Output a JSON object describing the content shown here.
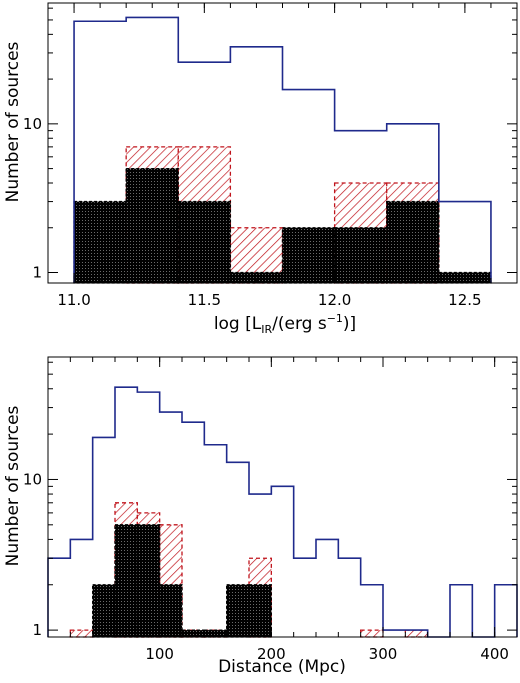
{
  "colors": {
    "all_outline": "#1f2a8c",
    "red_hatch": "#c0141c",
    "black_fill": "#000000"
  },
  "chart_data": [
    {
      "type": "histogram",
      "xlabel": "log [L_IR/(erg s^-1)]",
      "xlabel_parts": {
        "pre": "log [L",
        "sub": "IR",
        "mid": "/(erg s",
        "sup": "−1",
        "post": ")]"
      },
      "ylabel": "Number of sources",
      "yscale": "log",
      "xlim": [
        10.9,
        12.7
      ],
      "ylim": [
        0.85,
        65
      ],
      "xticks": [
        11.0,
        11.5,
        12.0,
        12.5
      ],
      "xtick_labels": [
        "11.0",
        "11.5",
        "12.0",
        "12.5"
      ],
      "yticks": [
        1,
        10
      ],
      "ytick_labels": [
        "1",
        "10"
      ],
      "bin_edges": [
        11.0,
        11.2,
        11.4,
        11.6,
        11.8,
        12.0,
        12.2,
        12.4,
        12.6
      ],
      "series": [
        {
          "style": "step-outline",
          "values": [
            49,
            52,
            26,
            33,
            17,
            9,
            10,
            3
          ]
        },
        {
          "style": "red-hatched",
          "values": [
            0,
            7,
            7,
            2,
            0,
            4,
            4,
            0
          ]
        },
        {
          "style": "black-filled",
          "values": [
            3,
            5,
            3,
            1,
            2,
            2,
            3,
            1
          ]
        }
      ]
    },
    {
      "type": "histogram",
      "xlabel": "Distance (Mpc)",
      "ylabel": "Number of sources",
      "yscale": "log",
      "xlim": [
        0,
        420
      ],
      "ylim": [
        0.9,
        65
      ],
      "xticks": [
        100,
        200,
        300,
        400
      ],
      "xtick_labels": [
        "100",
        "200",
        "300",
        "400"
      ],
      "yticks": [
        1,
        10
      ],
      "ytick_labels": [
        "1",
        "10"
      ],
      "bin_edges": [
        0,
        20,
        40,
        60,
        80,
        100,
        120,
        140,
        160,
        180,
        200,
        220,
        240,
        260,
        280,
        300,
        320,
        340,
        360,
        380,
        400,
        420
      ],
      "series": [
        {
          "style": "step-outline",
          "values": [
            3,
            4,
            19,
            41,
            38,
            28,
            24,
            17,
            13,
            8,
            9,
            3,
            4,
            3,
            2,
            1,
            1,
            0,
            2,
            0,
            2
          ]
        },
        {
          "style": "red-hatched",
          "values": [
            0,
            1,
            0,
            7,
            6,
            5,
            1,
            1,
            0,
            3,
            0,
            0,
            0,
            0,
            1,
            0,
            1,
            0,
            0,
            0,
            0
          ]
        },
        {
          "style": "black-filled",
          "values": [
            0,
            0,
            2,
            5,
            5,
            2,
            1,
            1,
            2,
            2,
            0,
            0,
            0,
            0,
            0,
            0,
            0,
            0,
            0,
            0,
            0
          ]
        }
      ]
    }
  ]
}
